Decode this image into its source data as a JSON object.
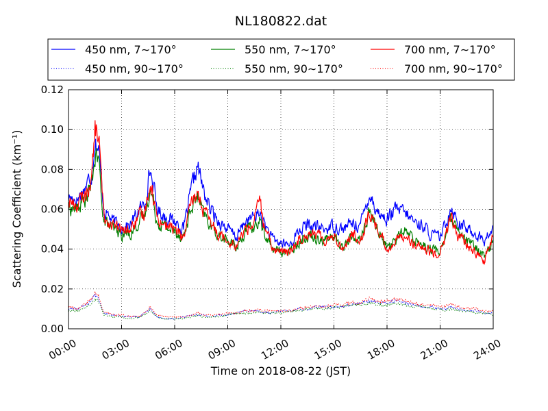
{
  "chart_data": {
    "type": "line",
    "title": "NL180822.dat",
    "xlabel": "Time on 2018-08-22 (JST)",
    "ylabel": "Scattering Coefficient (km⁻¹)",
    "x_unit": "hours",
    "xlim": [
      0,
      24
    ],
    "ylim": [
      0,
      0.12
    ],
    "x_ticks": [
      {
        "value": 0,
        "label": "00:00"
      },
      {
        "value": 3,
        "label": "03:00"
      },
      {
        "value": 6,
        "label": "06:00"
      },
      {
        "value": 9,
        "label": "09:00"
      },
      {
        "value": 12,
        "label": "12:00"
      },
      {
        "value": 15,
        "label": "15:00"
      },
      {
        "value": 18,
        "label": "18:00"
      },
      {
        "value": 21,
        "label": "21:00"
      },
      {
        "value": 24,
        "label": "24:00"
      }
    ],
    "y_ticks": [
      {
        "value": 0,
        "label": "0.00"
      },
      {
        "value": 0.02,
        "label": "0.02"
      },
      {
        "value": 0.04,
        "label": "0.04"
      },
      {
        "value": 0.06,
        "label": "0.06"
      },
      {
        "value": 0.08,
        "label": "0.08"
      },
      {
        "value": 0.1,
        "label": "0.10"
      },
      {
        "value": 0.12,
        "label": "0.12"
      }
    ],
    "grid": true,
    "legend": {
      "placement": "top, above plot",
      "columns": 3
    },
    "x": [
      0,
      0.5,
      1,
      1.3,
      1.5,
      1.7,
      2,
      2.5,
      3,
      3.5,
      4,
      4.3,
      4.6,
      4.8,
      5,
      5.5,
      6,
      6.5,
      7,
      7.3,
      7.6,
      8,
      8.5,
      9,
      9.5,
      10,
      10.5,
      10.8,
      11,
      11.5,
      12,
      12.5,
      13,
      13.5,
      14,
      14.5,
      15,
      15.5,
      16,
      16.5,
      17,
      17.5,
      18,
      18.5,
      19,
      19.5,
      20,
      20.5,
      21,
      21.3,
      21.6,
      22,
      22.5,
      23,
      23.5,
      24
    ],
    "series": [
      {
        "name": "450 nm, 7∼170°",
        "color": "#0000ff",
        "style": "solid",
        "values": [
          0.066,
          0.065,
          0.072,
          0.078,
          0.095,
          0.09,
          0.06,
          0.054,
          0.051,
          0.052,
          0.06,
          0.062,
          0.08,
          0.072,
          0.06,
          0.056,
          0.054,
          0.05,
          0.072,
          0.082,
          0.07,
          0.06,
          0.054,
          0.05,
          0.046,
          0.054,
          0.056,
          0.058,
          0.054,
          0.045,
          0.043,
          0.042,
          0.049,
          0.052,
          0.051,
          0.05,
          0.052,
          0.05,
          0.053,
          0.052,
          0.068,
          0.058,
          0.055,
          0.06,
          0.058,
          0.054,
          0.052,
          0.047,
          0.046,
          0.052,
          0.062,
          0.054,
          0.05,
          0.048,
          0.044,
          0.05
        ]
      },
      {
        "name": "550 nm, 7∼170°",
        "color": "#008000",
        "style": "solid",
        "values": [
          0.061,
          0.06,
          0.066,
          0.072,
          0.086,
          0.084,
          0.054,
          0.05,
          0.047,
          0.048,
          0.054,
          0.056,
          0.07,
          0.064,
          0.054,
          0.051,
          0.049,
          0.046,
          0.062,
          0.066,
          0.058,
          0.052,
          0.047,
          0.044,
          0.041,
          0.049,
          0.051,
          0.054,
          0.05,
          0.04,
          0.039,
          0.038,
          0.044,
          0.047,
          0.046,
          0.045,
          0.046,
          0.041,
          0.046,
          0.045,
          0.058,
          0.05,
          0.041,
          0.045,
          0.049,
          0.045,
          0.043,
          0.04,
          0.039,
          0.047,
          0.055,
          0.048,
          0.044,
          0.041,
          0.037,
          0.044
        ]
      },
      {
        "name": "700 nm, 7∼170°",
        "color": "#ff0000",
        "style": "solid",
        "values": [
          0.064,
          0.062,
          0.068,
          0.075,
          0.1,
          0.098,
          0.056,
          0.052,
          0.049,
          0.05,
          0.056,
          0.058,
          0.074,
          0.066,
          0.056,
          0.052,
          0.05,
          0.046,
          0.064,
          0.068,
          0.06,
          0.053,
          0.048,
          0.045,
          0.042,
          0.05,
          0.053,
          0.068,
          0.052,
          0.041,
          0.039,
          0.038,
          0.045,
          0.048,
          0.047,
          0.045,
          0.047,
          0.04,
          0.047,
          0.045,
          0.058,
          0.05,
          0.04,
          0.044,
          0.048,
          0.042,
          0.04,
          0.038,
          0.038,
          0.046,
          0.056,
          0.047,
          0.042,
          0.038,
          0.034,
          0.046
        ]
      },
      {
        "name": "450 nm, 90∼170°",
        "color": "#0000ff",
        "style": "dotted",
        "values": [
          0.01,
          0.01,
          0.012,
          0.014,
          0.017,
          0.015,
          0.008,
          0.007,
          0.006,
          0.006,
          0.006,
          0.008,
          0.01,
          0.008,
          0.006,
          0.005,
          0.005,
          0.006,
          0.007,
          0.007,
          0.007,
          0.006,
          0.007,
          0.007,
          0.008,
          0.009,
          0.009,
          0.009,
          0.008,
          0.008,
          0.009,
          0.009,
          0.01,
          0.01,
          0.011,
          0.011,
          0.011,
          0.011,
          0.012,
          0.013,
          0.014,
          0.013,
          0.013,
          0.014,
          0.013,
          0.012,
          0.011,
          0.011,
          0.01,
          0.01,
          0.011,
          0.01,
          0.009,
          0.009,
          0.008,
          0.008
        ]
      },
      {
        "name": "550 nm, 90∼170°",
        "color": "#008000",
        "style": "dotted",
        "values": [
          0.009,
          0.009,
          0.011,
          0.013,
          0.015,
          0.014,
          0.007,
          0.006,
          0.006,
          0.005,
          0.006,
          0.007,
          0.009,
          0.008,
          0.006,
          0.005,
          0.005,
          0.005,
          0.006,
          0.007,
          0.006,
          0.006,
          0.006,
          0.007,
          0.008,
          0.008,
          0.008,
          0.009,
          0.008,
          0.008,
          0.008,
          0.009,
          0.009,
          0.01,
          0.01,
          0.01,
          0.011,
          0.011,
          0.012,
          0.012,
          0.013,
          0.012,
          0.012,
          0.013,
          0.012,
          0.011,
          0.011,
          0.01,
          0.01,
          0.009,
          0.01,
          0.009,
          0.009,
          0.008,
          0.008,
          0.007
        ]
      },
      {
        "name": "700 nm, 90∼170°",
        "color": "#ff0000",
        "style": "dotted",
        "values": [
          0.011,
          0.01,
          0.013,
          0.015,
          0.018,
          0.016,
          0.008,
          0.007,
          0.007,
          0.006,
          0.006,
          0.008,
          0.011,
          0.009,
          0.007,
          0.006,
          0.006,
          0.006,
          0.007,
          0.008,
          0.007,
          0.007,
          0.007,
          0.008,
          0.008,
          0.009,
          0.009,
          0.01,
          0.009,
          0.009,
          0.009,
          0.009,
          0.01,
          0.011,
          0.011,
          0.011,
          0.012,
          0.012,
          0.013,
          0.013,
          0.015,
          0.014,
          0.014,
          0.015,
          0.014,
          0.013,
          0.012,
          0.012,
          0.011,
          0.011,
          0.013,
          0.011,
          0.01,
          0.01,
          0.009,
          0.009
        ]
      }
    ]
  }
}
